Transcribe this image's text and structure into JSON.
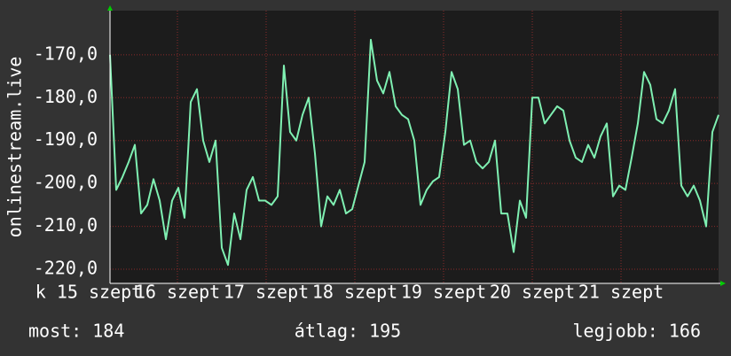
{
  "chart_data": {
    "type": "line",
    "y_label": "onlinestream.live",
    "x": [
      15.24,
      15.31,
      15.38,
      15.45,
      15.52,
      15.59,
      15.66,
      15.73,
      15.8,
      15.87,
      15.94,
      16.01,
      16.08,
      16.15,
      16.22,
      16.29,
      16.36,
      16.43,
      16.5,
      16.57,
      16.64,
      16.71,
      16.78,
      16.85,
      16.92,
      16.99,
      17.06,
      17.13,
      17.2,
      17.27,
      17.34,
      17.41,
      17.48,
      17.55,
      17.62,
      17.69,
      17.76,
      17.83,
      17.9,
      17.97,
      18.04,
      18.11,
      18.18,
      18.25,
      18.32,
      18.39,
      18.46,
      18.53,
      18.6,
      18.67,
      18.74,
      18.81,
      18.88,
      18.95,
      19.02,
      19.09,
      19.16,
      19.23,
      19.3,
      19.37,
      19.44,
      19.51,
      19.58,
      19.65,
      19.72,
      19.79,
      19.86,
      19.93,
      20.0,
      20.07,
      20.14,
      20.21,
      20.28,
      20.35,
      20.42,
      20.49,
      20.56,
      20.63,
      20.7,
      20.77,
      20.84,
      20.91,
      20.98,
      21.05,
      21.12,
      21.19,
      21.26,
      21.33,
      21.4,
      21.47,
      21.54,
      21.61,
      21.68,
      21.75,
      21.82,
      21.89,
      21.96,
      22.03,
      22.1
    ],
    "series": [
      {
        "name": "onlinestream.live",
        "color": "#7ff0b2",
        "values": [
          -170,
          -201.5,
          -198.5,
          -195,
          -191,
          -207,
          -205,
          -199,
          -204,
          -213,
          -204,
          -201,
          -208,
          -181,
          -178,
          -190,
          -195,
          -190,
          -215,
          -219,
          -207,
          -213,
          -201.5,
          -198.5,
          -204,
          -204,
          -205,
          -203,
          -172.5,
          -188,
          -190,
          -184,
          -180,
          -193,
          -210,
          -203,
          -205,
          -201.5,
          -207,
          -206,
          -200.5,
          -195,
          -166.5,
          -176,
          -179,
          -174,
          -182,
          -184,
          -185,
          -190,
          -205,
          -201.5,
          -199.5,
          -198.5,
          -188,
          -174,
          -178,
          -191,
          -190,
          -195,
          -196.5,
          -195,
          -190,
          -207,
          -207,
          -216,
          -204,
          -208,
          -180,
          -180,
          -186,
          -184,
          -182,
          -183,
          -190,
          -194,
          -195,
          -191,
          -194,
          -189,
          -186,
          -203,
          -200.5,
          -201.5,
          -194,
          -186,
          -174,
          -177,
          -185,
          -186,
          -183,
          -178,
          -200.5,
          -203,
          -200.5,
          -204,
          -210,
          -188,
          -184
        ]
      }
    ],
    "xlim": [
      15.24,
      22.1
    ],
    "ylim": [
      -223.3,
      -159.7
    ],
    "xticks": [
      {
        "value": 15,
        "label": "k 15 szept"
      },
      {
        "value": 16,
        "label": "16 szept"
      },
      {
        "value": 17,
        "label": "17 szept"
      },
      {
        "value": 18,
        "label": "18 szept"
      },
      {
        "value": 19,
        "label": "19 szept"
      },
      {
        "value": 20,
        "label": "20 szept"
      },
      {
        "value": 21,
        "label": "21 szept"
      }
    ],
    "yticks": [
      {
        "value": -170,
        "label": "-170,0"
      },
      {
        "value": -180,
        "label": "-180,0"
      },
      {
        "value": -190,
        "label": "-190,0"
      },
      {
        "value": -200,
        "label": "-200,0"
      },
      {
        "value": -210,
        "label": "-210,0"
      },
      {
        "value": -220,
        "label": "-220,0"
      }
    ],
    "grid": true,
    "stats": [
      "most: 184",
      "átlag: 195",
      "legjobb: 166"
    ]
  }
}
